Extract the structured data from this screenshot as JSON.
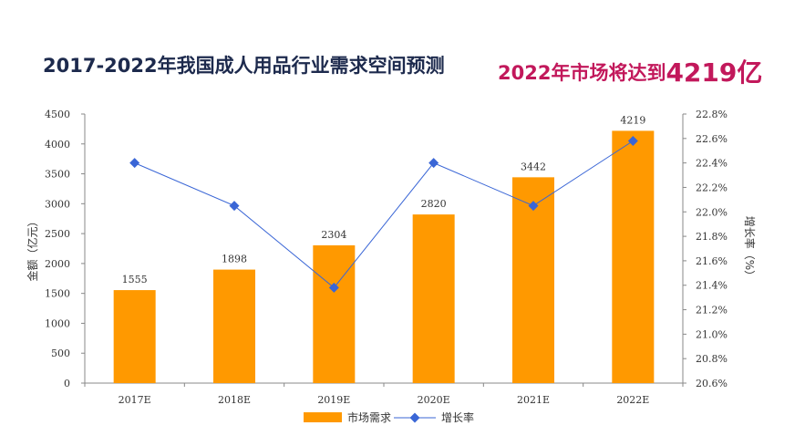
{
  "title": {
    "main": "2017-2022年我国成人用品行业需求空间预测",
    "highlight_prefix": "2022年市场将达到",
    "highlight_value": "4219亿"
  },
  "colors": {
    "title_main": "#1d2a4d",
    "title_highlight": "#c2185b",
    "bar": "#ff9900",
    "line": "#3a66d6",
    "axis": "#888888"
  },
  "chart_data": {
    "type": "bar",
    "categories": [
      "2017E",
      "2018E",
      "2019E",
      "2020E",
      "2021E",
      "2022E"
    ],
    "series": [
      {
        "name": "市场需求",
        "type": "bar",
        "axis": "left",
        "values": [
          1555,
          1898,
          2304,
          2820,
          3442,
          4219
        ]
      },
      {
        "name": "增长率",
        "type": "line",
        "axis": "right",
        "values": [
          22.4,
          22.05,
          21.38,
          22.4,
          22.05,
          22.58
        ]
      }
    ],
    "data_labels": [
      "1555",
      "1898",
      "2304",
      "2820",
      "3442",
      "4219"
    ],
    "ylabel": "金额（亿元）",
    "y2label": "增长率（%）",
    "ylim": [
      0,
      4500
    ],
    "y_ticks": [
      0,
      500,
      1000,
      1500,
      2000,
      2500,
      3000,
      3500,
      4000,
      4500
    ],
    "y2lim": [
      20.6,
      22.8
    ],
    "y2_ticks": [
      "20.6%",
      "20.8%",
      "21.0%",
      "21.2%",
      "21.4%",
      "21.6%",
      "21.8%",
      "22.0%",
      "22.2%",
      "22.4%",
      "22.6%",
      "22.8%"
    ],
    "grid": false,
    "legend": "bottom"
  }
}
